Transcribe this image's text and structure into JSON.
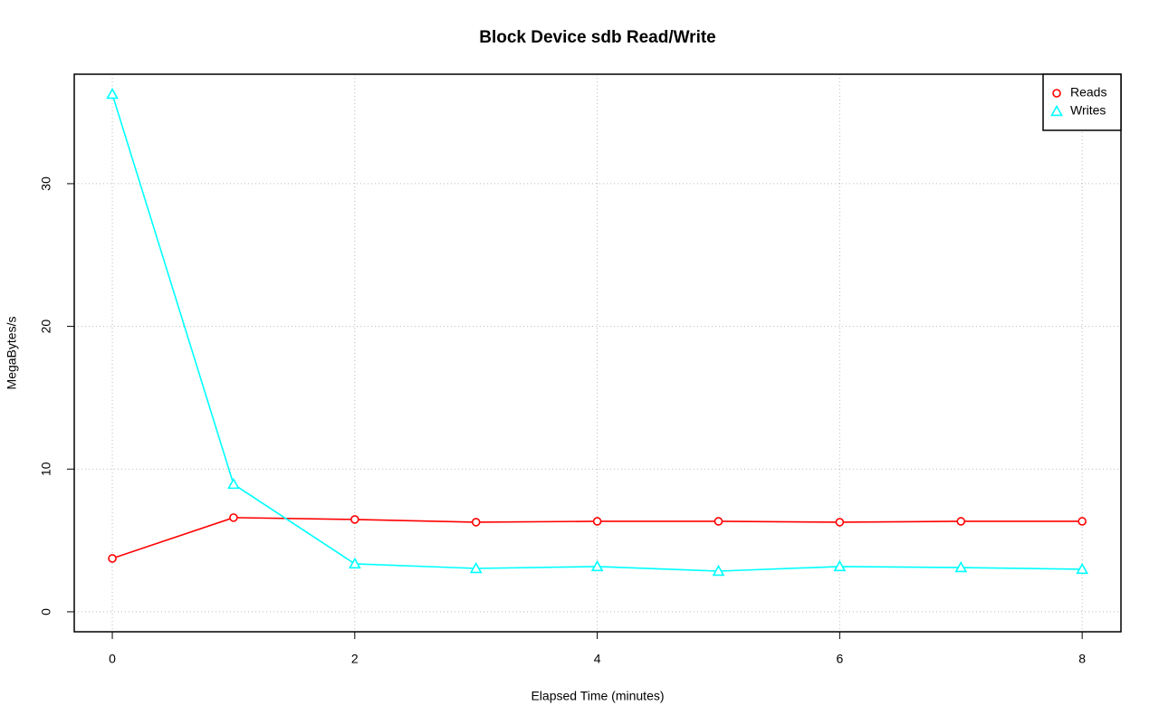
{
  "chart_data": {
    "type": "line",
    "title": "Block Device sdb Read/Write",
    "x_label": "Elapsed Time (minutes)",
    "y_label": "MegaBytes/s",
    "x": [
      0,
      1,
      2,
      3,
      4,
      5,
      6,
      7,
      8
    ],
    "series": [
      {
        "name": "Reads",
        "color": "#ff0000",
        "marker": "circle",
        "values": [
          3.74,
          6.6,
          6.47,
          6.28,
          6.34,
          6.34,
          6.28,
          6.34,
          6.34
        ]
      },
      {
        "name": "Writes",
        "color": "#00ffff",
        "marker": "triangle",
        "values": [
          36.27,
          8.94,
          3.36,
          3.04,
          3.17,
          2.85,
          3.17,
          3.1,
          2.98
        ]
      }
    ],
    "xlim": [
      -0.314,
      8.32
    ],
    "ylim": [
      -1.4,
      37.67
    ],
    "xticks": [
      0,
      2,
      4,
      6,
      8
    ],
    "yticks": [
      0,
      10,
      20,
      30
    ],
    "grid": true,
    "legend": "top-right"
  }
}
